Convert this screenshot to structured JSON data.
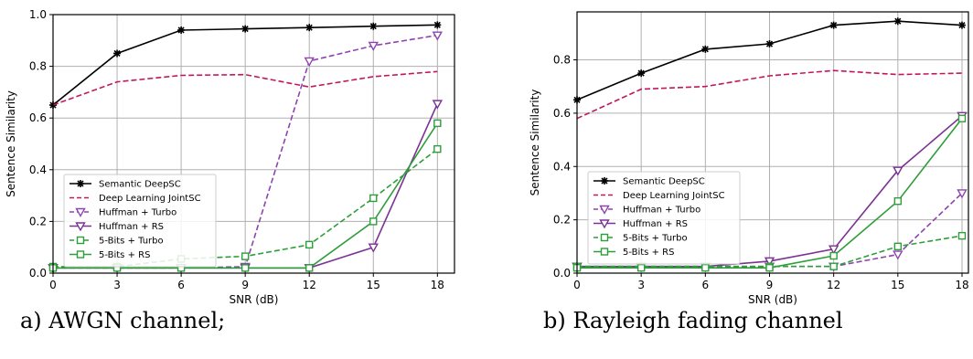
{
  "chart_data": [
    {
      "type": "line",
      "caption": "a) AWGN channel;",
      "xlabel": "SNR (dB)",
      "ylabel": "Sentence Similarity",
      "xlim": [
        0,
        18.8
      ],
      "ylim": [
        0,
        1.0
      ],
      "x": [
        0,
        3,
        6,
        9,
        12,
        15,
        18
      ],
      "xticks": [
        "0",
        "3",
        "6",
        "9",
        "12",
        "15",
        "18"
      ],
      "yticks": [
        0.0,
        0.2,
        0.4,
        0.6,
        0.8,
        1.0
      ],
      "ytick_labels": [
        "0.0",
        "0.2",
        "0.4",
        "0.6",
        "0.8",
        "1.0"
      ],
      "grid": true,
      "legend_position": "center-left",
      "series": [
        {
          "name": "Semantic DeepSC",
          "color": "#000000",
          "dash": "solid",
          "marker": "star",
          "values": [
            0.65,
            0.85,
            0.94,
            0.945,
            0.95,
            0.955,
            0.96
          ]
        },
        {
          "name": "Deep Learning JointSC",
          "color": "#c2185b",
          "dash": "dashed",
          "marker": "none",
          "values": [
            0.65,
            0.74,
            0.765,
            0.768,
            0.72,
            0.76,
            0.78
          ]
        },
        {
          "name": "Huffman + Turbo",
          "color": "#8e44ad",
          "dash": "dashed",
          "marker": "triangle-open",
          "values": [
            0.02,
            0.02,
            0.02,
            0.025,
            0.82,
            0.88,
            0.92
          ]
        },
        {
          "name": "Huffman + RS",
          "color": "#7b3294",
          "dash": "solid",
          "marker": "triangle-open",
          "values": [
            0.02,
            0.02,
            0.02,
            0.02,
            0.02,
            0.1,
            0.655
          ]
        },
        {
          "name": "5-Bits + Turbo",
          "color": "#2e9e3a",
          "dash": "dashed",
          "marker": "square-open",
          "values": [
            0.025,
            0.025,
            0.055,
            0.065,
            0.11,
            0.29,
            0.48
          ]
        },
        {
          "name": "5-Bits + RS",
          "color": "#2e9e3a",
          "dash": "solid",
          "marker": "square-open",
          "values": [
            0.02,
            0.02,
            0.02,
            0.02,
            0.02,
            0.2,
            0.58
          ]
        }
      ]
    },
    {
      "type": "line",
      "caption": "b) Rayleigh fading channel",
      "xlabel": "SNR (dB)",
      "ylabel": "Sentence Similarity",
      "xlim": [
        0,
        18.3
      ],
      "ylim": [
        0,
        0.98
      ],
      "x": [
        0,
        3,
        6,
        9,
        12,
        15,
        18
      ],
      "xticks": [
        "0",
        "3",
        "6",
        "9",
        "12",
        "15",
        "18"
      ],
      "yticks": [
        0.0,
        0.2,
        0.4,
        0.6,
        0.8
      ],
      "ytick_labels": [
        "0.0",
        "0.2",
        "0.4",
        "0.6",
        "0.8"
      ],
      "grid": true,
      "legend_position": "center-left",
      "series": [
        {
          "name": "Semantic DeepSC",
          "color": "#000000",
          "dash": "solid",
          "marker": "star",
          "values": [
            0.65,
            0.75,
            0.84,
            0.86,
            0.93,
            0.945,
            0.93
          ]
        },
        {
          "name": "Deep Learning JointSC",
          "color": "#c2185b",
          "dash": "dashed",
          "marker": "none",
          "values": [
            0.58,
            0.69,
            0.7,
            0.74,
            0.76,
            0.745,
            0.75
          ]
        },
        {
          "name": "Huffman + Turbo",
          "color": "#8e44ad",
          "dash": "dashed",
          "marker": "triangle-open",
          "values": [
            0.025,
            0.025,
            0.025,
            0.025,
            0.025,
            0.07,
            0.3
          ]
        },
        {
          "name": "Huffman + RS",
          "color": "#7b3294",
          "dash": "solid",
          "marker": "triangle-open",
          "values": [
            0.025,
            0.025,
            0.025,
            0.045,
            0.09,
            0.385,
            0.59
          ]
        },
        {
          "name": "5-Bits + Turbo",
          "color": "#2e9e3a",
          "dash": "dashed",
          "marker": "square-open",
          "values": [
            0.025,
            0.025,
            0.025,
            0.025,
            0.025,
            0.1,
            0.14
          ]
        },
        {
          "name": "5-Bits + RS",
          "color": "#2e9e3a",
          "dash": "solid",
          "marker": "square-open",
          "values": [
            0.02,
            0.02,
            0.02,
            0.02,
            0.065,
            0.27,
            0.58
          ]
        }
      ]
    }
  ]
}
